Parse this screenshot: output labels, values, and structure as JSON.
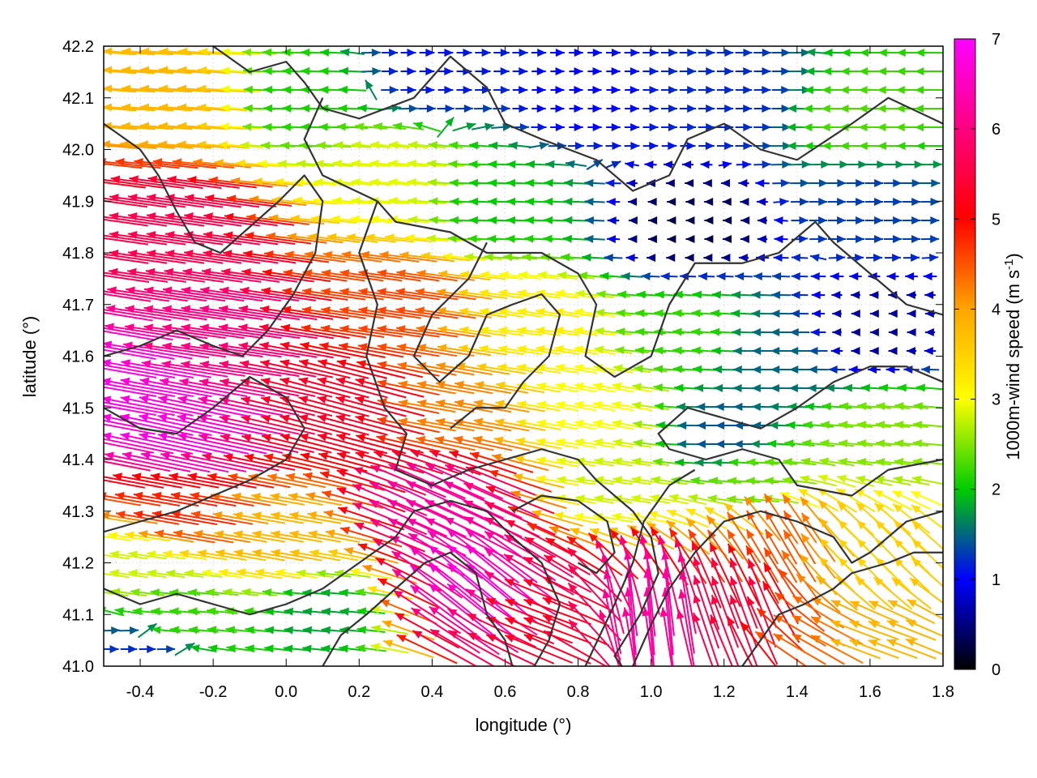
{
  "chart_data": {
    "type": "vector-field",
    "xlabel": "longitude (°)",
    "ylabel": "latitude (°)",
    "xlim": [
      -0.5,
      1.8
    ],
    "ylim": [
      41.0,
      42.2
    ],
    "x_ticks": [
      "-0.4",
      "-0.2",
      "0.0",
      "0.2",
      "0.4",
      "0.6",
      "0.8",
      "1.0",
      "1.2",
      "1.4",
      "1.6",
      "1.8"
    ],
    "x_tick_values": [
      -0.4,
      -0.2,
      0.0,
      0.2,
      0.4,
      0.6,
      0.8,
      1.0,
      1.2,
      1.4,
      1.6,
      1.8
    ],
    "y_ticks": [
      "41.0",
      "41.1",
      "41.2",
      "41.3",
      "41.4",
      "41.5",
      "41.6",
      "41.7",
      "41.8",
      "41.9",
      "42.0",
      "42.1",
      "42.2"
    ],
    "y_tick_values": [
      41.0,
      41.1,
      41.2,
      41.3,
      41.4,
      41.5,
      41.6,
      41.7,
      41.8,
      41.9,
      42.0,
      42.1,
      42.2
    ],
    "grid": true,
    "colorbar": {
      "label_main": "1000m-wind speed (m s",
      "label_sup": "-1",
      "label_end": ")",
      "range": [
        0,
        7
      ],
      "ticks": [
        "0",
        "1",
        "2",
        "3",
        "4",
        "5",
        "6",
        "7"
      ],
      "tick_values": [
        0,
        1,
        2,
        3,
        4,
        5,
        6,
        7
      ],
      "colors": [
        "#000000",
        "#0000ff",
        "#00cc00",
        "#ffff00",
        "#ffa500",
        "#ff0000",
        "#ff00ff"
      ]
    },
    "wind_regimes": [
      {
        "lon": -0.45,
        "lat": 41.55,
        "speed": 6.8,
        "dir_deg": 170
      },
      {
        "lon": -0.3,
        "lat": 41.45,
        "speed": 6.8,
        "dir_deg": 168
      },
      {
        "lon": -0.2,
        "lat": 41.65,
        "speed": 6.0,
        "dir_deg": 172
      },
      {
        "lon": -0.3,
        "lat": 41.85,
        "speed": 5.6,
        "dir_deg": 172
      },
      {
        "lon": -0.3,
        "lat": 42.1,
        "speed": 3.8,
        "dir_deg": 176
      },
      {
        "lon": 0.05,
        "lat": 42.1,
        "speed": 2.1,
        "dir_deg": 178
      },
      {
        "lon": 0.4,
        "lat": 42.15,
        "speed": 1.1,
        "dir_deg": 0
      },
      {
        "lon": 0.8,
        "lat": 42.1,
        "speed": 1.0,
        "dir_deg": 0
      },
      {
        "lon": 1.2,
        "lat": 42.1,
        "speed": 1.2,
        "dir_deg": 0
      },
      {
        "lon": 1.6,
        "lat": 42.05,
        "speed": 2.3,
        "dir_deg": 180
      },
      {
        "lon": 1.1,
        "lat": 41.85,
        "speed": 0.3,
        "dir_deg": 180
      },
      {
        "lon": 1.6,
        "lat": 41.9,
        "speed": 1.3,
        "dir_deg": 0
      },
      {
        "lon": 0.6,
        "lat": 41.9,
        "speed": 2.0,
        "dir_deg": 178
      },
      {
        "lon": 0.3,
        "lat": 41.95,
        "speed": 2.9,
        "dir_deg": 175
      },
      {
        "lon": 0.3,
        "lat": 41.7,
        "speed": 4.6,
        "dir_deg": 172
      },
      {
        "lon": 0.7,
        "lat": 41.65,
        "speed": 3.2,
        "dir_deg": 172
      },
      {
        "lon": 0.85,
        "lat": 41.5,
        "speed": 3.0,
        "dir_deg": 170
      },
      {
        "lon": 1.1,
        "lat": 41.65,
        "speed": 2.2,
        "dir_deg": 176
      },
      {
        "lon": 1.35,
        "lat": 41.6,
        "speed": 1.5,
        "dir_deg": 180
      },
      {
        "lon": 1.6,
        "lat": 41.65,
        "speed": 0.6,
        "dir_deg": 180
      },
      {
        "lon": 1.2,
        "lat": 41.45,
        "speed": 1.4,
        "dir_deg": 180
      },
      {
        "lon": 1.65,
        "lat": 41.45,
        "speed": 2.5,
        "dir_deg": 175
      },
      {
        "lon": 1.3,
        "lat": 41.35,
        "speed": 2.4,
        "dir_deg": 176
      },
      {
        "lon": 0.9,
        "lat": 41.35,
        "speed": 2.8,
        "dir_deg": 172
      },
      {
        "lon": 0.45,
        "lat": 41.3,
        "speed": 6.3,
        "dir_deg": 155
      },
      {
        "lon": 0.55,
        "lat": 41.15,
        "speed": 6.7,
        "dir_deg": 140
      },
      {
        "lon": 0.7,
        "lat": 41.1,
        "speed": 5.2,
        "dir_deg": 160
      },
      {
        "lon": 0.2,
        "lat": 41.5,
        "speed": 5.3,
        "dir_deg": 165
      },
      {
        "lon": 0.45,
        "lat": 41.5,
        "speed": 4.2,
        "dir_deg": 170
      },
      {
        "lon": -0.3,
        "lat": 41.3,
        "speed": 4.8,
        "dir_deg": 170
      },
      {
        "lon": -0.4,
        "lat": 41.2,
        "speed": 2.8,
        "dir_deg": 172
      },
      {
        "lon": -0.3,
        "lat": 41.1,
        "speed": 2.2,
        "dir_deg": 175
      },
      {
        "lon": -0.4,
        "lat": 41.02,
        "speed": 1.2,
        "dir_deg": 0
      },
      {
        "lon": 0.1,
        "lat": 41.1,
        "speed": 1.8,
        "dir_deg": 175
      },
      {
        "lon": 0.0,
        "lat": 41.25,
        "speed": 3.8,
        "dir_deg": 170
      },
      {
        "lon": 1.0,
        "lat": 41.1,
        "speed": 6.3,
        "dir_deg": 95
      },
      {
        "lon": 1.25,
        "lat": 41.1,
        "speed": 5.5,
        "dir_deg": 110
      },
      {
        "lon": 1.35,
        "lat": 41.25,
        "speed": 4.5,
        "dir_deg": 120
      },
      {
        "lon": 1.6,
        "lat": 41.2,
        "speed": 3.5,
        "dir_deg": 135
      },
      {
        "lon": 1.6,
        "lat": 41.05,
        "speed": 3.8,
        "dir_deg": 160
      },
      {
        "lon": 1.45,
        "lat": 41.05,
        "speed": 4.4,
        "dir_deg": 150
      }
    ],
    "contour_lines": [
      [
        [
          -0.2,
          42.2
        ],
        [
          -0.1,
          42.15
        ],
        [
          0.0,
          42.17
        ],
        [
          0.05,
          42.13
        ],
        [
          0.1,
          42.08
        ],
        [
          0.2,
          42.06
        ],
        [
          0.35,
          42.1
        ],
        [
          0.45,
          42.18
        ],
        [
          0.55,
          42.12
        ],
        [
          0.6,
          42.05
        ],
        [
          0.7,
          42.02
        ],
        [
          0.85,
          41.98
        ],
        [
          0.95,
          41.92
        ],
        [
          1.05,
          41.95
        ],
        [
          1.1,
          42.02
        ],
        [
          1.2,
          42.05
        ],
        [
          1.3,
          42.0
        ],
        [
          1.4,
          41.98
        ],
        [
          1.55,
          42.05
        ],
        [
          1.65,
          42.1
        ],
        [
          1.8,
          42.05
        ]
      ],
      [
        [
          0.1,
          42.1
        ],
        [
          0.05,
          42.02
        ],
        [
          0.1,
          41.95
        ],
        [
          0.25,
          41.9
        ],
        [
          0.3,
          41.86
        ],
        [
          0.45,
          41.84
        ],
        [
          0.55,
          41.8
        ],
        [
          0.7,
          41.8
        ],
        [
          0.8,
          41.76
        ],
        [
          0.85,
          41.7
        ],
        [
          0.82,
          41.6
        ],
        [
          0.9,
          41.56
        ],
        [
          1.0,
          41.6
        ],
        [
          1.05,
          41.7
        ],
        [
          1.12,
          41.78
        ],
        [
          1.25,
          41.78
        ],
        [
          1.35,
          41.8
        ],
        [
          1.45,
          41.86
        ],
        [
          1.5,
          41.82
        ],
        [
          1.6,
          41.76
        ],
        [
          1.7,
          41.7
        ],
        [
          1.8,
          41.68
        ]
      ],
      [
        [
          1.8,
          41.55
        ],
        [
          1.7,
          41.58
        ],
        [
          1.6,
          41.58
        ],
        [
          1.5,
          41.55
        ],
        [
          1.4,
          41.5
        ],
        [
          1.3,
          41.46
        ],
        [
          1.2,
          41.48
        ],
        [
          1.1,
          41.5
        ],
        [
          1.02,
          41.45
        ],
        [
          1.05,
          41.42
        ],
        [
          1.15,
          41.4
        ],
        [
          1.25,
          41.42
        ],
        [
          1.35,
          41.4
        ],
        [
          1.4,
          41.35
        ],
        [
          1.55,
          41.33
        ],
        [
          1.65,
          41.38
        ],
        [
          1.8,
          41.4
        ]
      ],
      [
        [
          0.25,
          41.9
        ],
        [
          0.2,
          41.8
        ],
        [
          0.25,
          41.7
        ],
        [
          0.22,
          41.6
        ],
        [
          0.27,
          41.5
        ],
        [
          0.33,
          41.45
        ],
        [
          0.3,
          41.38
        ],
        [
          0.4,
          41.35
        ],
        [
          0.5,
          41.38
        ],
        [
          0.6,
          41.4
        ],
        [
          0.7,
          41.42
        ],
        [
          0.8,
          41.4
        ],
        [
          0.85,
          41.36
        ],
        [
          0.95,
          41.3
        ],
        [
          1.0,
          41.25
        ],
        [
          1.02,
          41.18
        ],
        [
          0.97,
          41.1
        ],
        [
          0.9,
          41.02
        ],
        [
          0.92,
          41.0
        ]
      ],
      [
        [
          0.55,
          41.82
        ],
        [
          0.5,
          41.75
        ],
        [
          0.4,
          41.68
        ],
        [
          0.35,
          41.6
        ],
        [
          0.42,
          41.55
        ],
        [
          0.5,
          41.6
        ],
        [
          0.55,
          41.68
        ],
        [
          0.62,
          41.7
        ],
        [
          0.7,
          41.72
        ],
        [
          0.75,
          41.68
        ],
        [
          0.72,
          41.6
        ],
        [
          0.65,
          41.55
        ],
        [
          0.6,
          41.5
        ],
        [
          0.52,
          41.5
        ],
        [
          0.45,
          41.46
        ]
      ],
      [
        [
          -0.5,
          42.05
        ],
        [
          -0.4,
          42.0
        ],
        [
          -0.35,
          41.95
        ],
        [
          -0.3,
          41.88
        ],
        [
          -0.25,
          41.82
        ],
        [
          -0.18,
          41.8
        ],
        [
          -0.1,
          41.85
        ],
        [
          -0.02,
          41.9
        ],
        [
          0.05,
          41.95
        ],
        [
          0.1,
          41.9
        ],
        [
          0.08,
          41.8
        ],
        [
          0.02,
          41.72
        ],
        [
          -0.05,
          41.65
        ],
        [
          -0.12,
          41.6
        ],
        [
          -0.2,
          41.62
        ],
        [
          -0.3,
          41.65
        ],
        [
          -0.4,
          41.62
        ],
        [
          -0.5,
          41.6
        ]
      ],
      [
        [
          -0.5,
          41.5
        ],
        [
          -0.4,
          41.46
        ],
        [
          -0.3,
          41.45
        ],
        [
          -0.2,
          41.5
        ],
        [
          -0.1,
          41.56
        ],
        [
          0.0,
          41.52
        ],
        [
          0.05,
          41.46
        ],
        [
          0.0,
          41.4
        ],
        [
          -0.1,
          41.36
        ],
        [
          -0.2,
          41.33
        ],
        [
          -0.3,
          41.3
        ],
        [
          -0.4,
          41.28
        ],
        [
          -0.5,
          41.26
        ]
      ],
      [
        [
          -0.5,
          41.15
        ],
        [
          -0.4,
          41.12
        ],
        [
          -0.3,
          41.14
        ],
        [
          -0.2,
          41.12
        ],
        [
          -0.1,
          41.1
        ],
        [
          0.0,
          41.12
        ],
        [
          0.1,
          41.15
        ],
        [
          0.2,
          41.2
        ],
        [
          0.3,
          41.25
        ],
        [
          0.35,
          41.3
        ],
        [
          0.45,
          41.32
        ],
        [
          0.55,
          41.3
        ],
        [
          0.62,
          41.25
        ],
        [
          0.7,
          41.2
        ],
        [
          0.75,
          41.12
        ],
        [
          0.72,
          41.05
        ],
        [
          0.68,
          41.0
        ]
      ],
      [
        [
          0.1,
          41.0
        ],
        [
          0.15,
          41.06
        ],
        [
          0.22,
          41.1
        ],
        [
          0.3,
          41.15
        ],
        [
          0.38,
          41.2
        ],
        [
          0.45,
          41.22
        ],
        [
          0.52,
          41.18
        ],
        [
          0.55,
          41.1
        ],
        [
          0.6,
          41.05
        ],
        [
          0.62,
          41.0
        ]
      ],
      [
        [
          0.95,
          41.0
        ],
        [
          1.0,
          41.08
        ],
        [
          1.05,
          41.15
        ],
        [
          1.12,
          41.22
        ],
        [
          1.2,
          41.28
        ],
        [
          1.3,
          41.3
        ],
        [
          1.4,
          41.28
        ],
        [
          1.5,
          41.25
        ],
        [
          1.55,
          41.2
        ],
        [
          1.6,
          41.22
        ],
        [
          1.7,
          41.28
        ],
        [
          1.8,
          41.3
        ]
      ],
      [
        [
          1.25,
          41.0
        ],
        [
          1.3,
          41.05
        ],
        [
          1.35,
          41.1
        ],
        [
          1.42,
          41.12
        ],
        [
          1.5,
          41.15
        ],
        [
          1.55,
          41.18
        ],
        [
          1.65,
          41.2
        ],
        [
          1.72,
          41.22
        ],
        [
          1.8,
          41.22
        ]
      ],
      [
        [
          0.82,
          41.0
        ],
        [
          0.86,
          41.06
        ],
        [
          0.9,
          41.12
        ],
        [
          0.95,
          41.2
        ],
        [
          0.98,
          41.28
        ],
        [
          1.05,
          41.35
        ],
        [
          1.12,
          41.38
        ]
      ],
      [
        [
          0.62,
          41.3
        ],
        [
          0.7,
          41.33
        ],
        [
          0.8,
          41.32
        ],
        [
          0.88,
          41.28
        ],
        [
          0.9,
          41.22
        ],
        [
          0.85,
          41.18
        ],
        [
          0.8,
          41.2
        ]
      ]
    ]
  }
}
